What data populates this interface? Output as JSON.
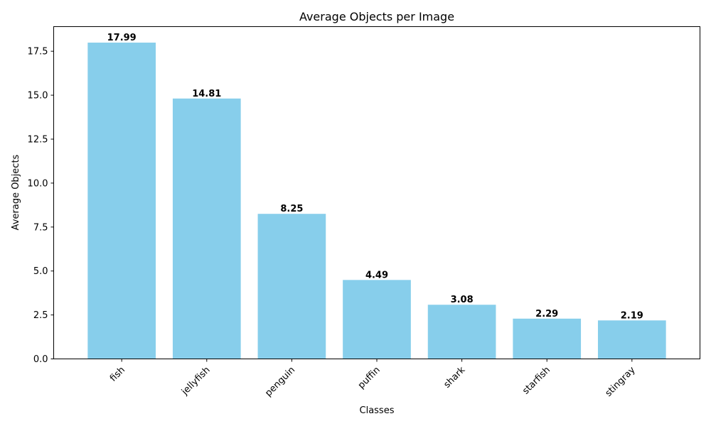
{
  "chart_data": {
    "type": "bar",
    "title": "Average Objects per Image",
    "xlabel": "Classes",
    "ylabel": "Average Objects",
    "categories": [
      "fish",
      "jellyfish",
      "penguin",
      "puffin",
      "shark",
      "starfish",
      "stingray"
    ],
    "values": [
      17.99,
      14.81,
      8.25,
      4.49,
      3.08,
      2.29,
      2.19
    ],
    "value_labels": [
      "17.99",
      "14.81",
      "8.25",
      "4.49",
      "3.08",
      "2.29",
      "2.19"
    ],
    "yticks": [
      0,
      2.5,
      5,
      7.5,
      10,
      12.5,
      15,
      17.5
    ],
    "ytick_labels": [
      "0.0",
      "2.5",
      "5.0",
      "7.5",
      "10.0",
      "12.5",
      "15.0",
      "17.5"
    ],
    "ylim": [
      0,
      18.9
    ],
    "bar_color": "#87CEEB",
    "grid": false,
    "xtick_rotation": "45 degrees"
  }
}
